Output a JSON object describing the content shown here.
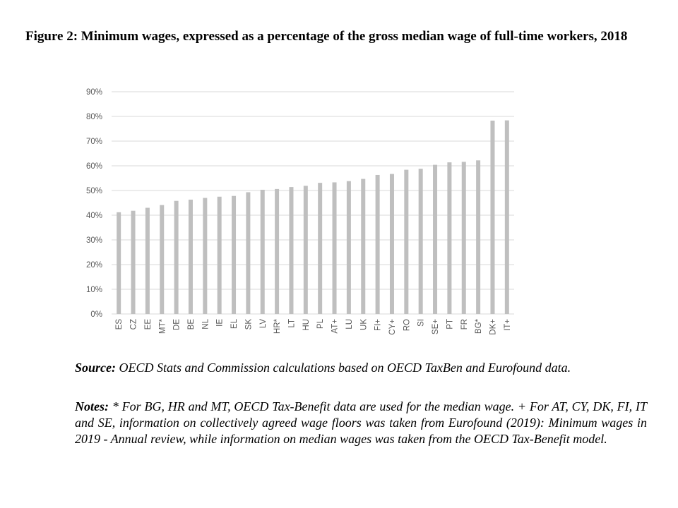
{
  "figure": {
    "title": "Figure 2: Minimum wages, expressed as a percentage of the gross median wage of full-time workers, 2018"
  },
  "chart_data": {
    "type": "bar",
    "categories": [
      "ES",
      "CZ",
      "EE",
      "MT*",
      "DE",
      "BE",
      "NL",
      "IE",
      "EL",
      "SK",
      "LV",
      "HR*",
      "LT",
      "HU",
      "PL",
      "AT+",
      "LU",
      "UK",
      "FI+",
      "CY+",
      "RO",
      "SI",
      "SE+",
      "PT",
      "FR",
      "BG*",
      "DK+",
      "IT+"
    ],
    "values": [
      41.2,
      41.8,
      43.0,
      44.1,
      45.8,
      46.3,
      47.0,
      47.5,
      47.8,
      49.3,
      50.3,
      50.6,
      51.4,
      51.9,
      53.1,
      53.3,
      53.8,
      54.7,
      56.3,
      56.7,
      58.4,
      58.8,
      60.4,
      61.4,
      61.6,
      62.2,
      78.3,
      78.4
    ],
    "y_ticks": [
      "0%",
      "10%",
      "20%",
      "30%",
      "40%",
      "50%",
      "60%",
      "70%",
      "80%",
      "90%"
    ],
    "ylim": [
      0,
      90
    ],
    "grid": true,
    "legend": "none",
    "bar_color": "#bfbfbf",
    "grid_color": "#d9d9d9",
    "title": "",
    "xlabel": "",
    "ylabel": ""
  },
  "source": {
    "label": "Source:",
    "text": " OECD Stats and Commission calculations based on OECD TaxBen and Eurofound data."
  },
  "notes": {
    "label": "Notes:",
    "text": " * For BG, HR and MT, OECD Tax-Benefit data are used for the median wage. + For AT, CY, DK, FI, IT and SE, information on collectively agreed wage floors was taken from Eurofound (2019): Minimum wages in 2019 - Annual review, while information on median wages was taken from the OECD Tax-Benefit model."
  }
}
